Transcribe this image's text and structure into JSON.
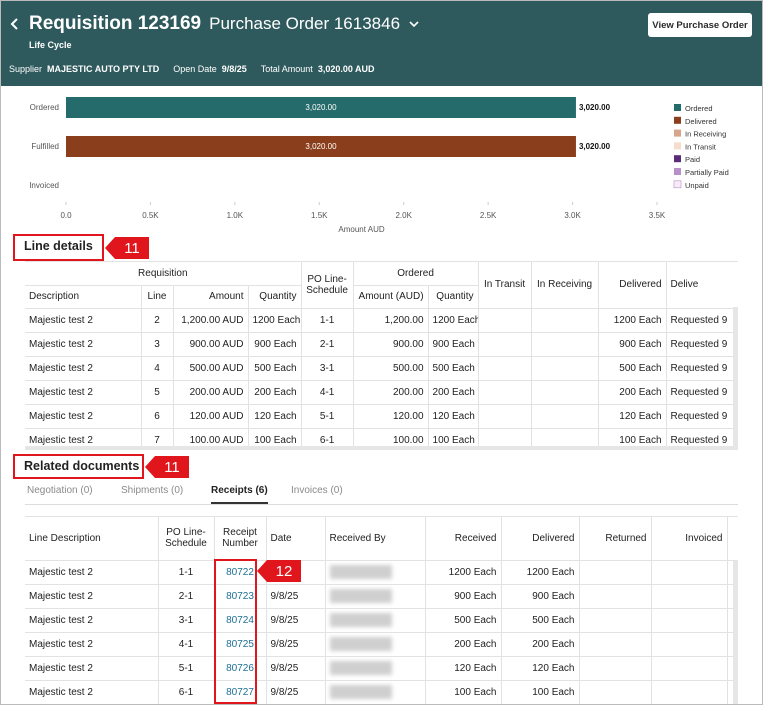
{
  "header": {
    "title": "Requisition 123169",
    "subtitle": "Purchase Order 1613846",
    "page_label": "Life Cycle",
    "button": "View Purchase Order",
    "info": [
      {
        "label": "Supplier",
        "value": "MAJESTIC AUTO PTY LTD"
      },
      {
        "label": "Open Date",
        "value": "9/8/25"
      },
      {
        "label": "Total Amount",
        "value": "3,020.00 AUD"
      }
    ]
  },
  "chart_data": {
    "type": "bar",
    "orientation": "horizontal",
    "categories": [
      "Ordered",
      "Fulfilled",
      "Invoiced"
    ],
    "series": [
      {
        "name": "Ordered",
        "color": "#256b6b",
        "values": [
          3020,
          null,
          null
        ],
        "value_labels": [
          "3,020.00",
          null,
          null
        ]
      },
      {
        "name": "Delivered",
        "color": "#8a3e1b",
        "values": [
          null,
          3020,
          null
        ],
        "value_labels": [
          null,
          "3,020.00",
          null
        ]
      },
      {
        "name": "In Receiving",
        "color": "#d6a58c",
        "values": [
          null,
          null,
          null
        ]
      },
      {
        "name": "In Transit",
        "color": "#f6dccb",
        "values": [
          null,
          null,
          null
        ]
      },
      {
        "name": "Paid",
        "color": "#5a2b78",
        "values": [
          null,
          null,
          null
        ]
      },
      {
        "name": "Partially Paid",
        "color": "#b790c9",
        "values": [
          null,
          null,
          null
        ]
      },
      {
        "name": "Unpaid",
        "color": "#f6ebf7",
        "values": [
          null,
          null,
          null
        ]
      }
    ],
    "xlim": [
      0,
      3500
    ],
    "xticks": [
      {
        "value": 0,
        "label": "0.0"
      },
      {
        "value": 500,
        "label": "0.5K"
      },
      {
        "value": 1000,
        "label": "1.0K"
      },
      {
        "value": 1500,
        "label": "1.5K"
      },
      {
        "value": 2000,
        "label": "2.0K"
      },
      {
        "value": 2500,
        "label": "2.5K"
      },
      {
        "value": 3000,
        "label": "3.0K"
      },
      {
        "value": 3500,
        "label": "3.5K"
      }
    ],
    "xlabel": "Amount AUD",
    "legend": "right"
  },
  "line_details": {
    "title": "Line details",
    "annotation": "11",
    "header_top": [
      "Requisition",
      "PO Line-Schedule",
      "Ordered",
      "In Transit",
      "In Receiving",
      "Delivered",
      "Delive"
    ],
    "header_sub": [
      "Description",
      "Line",
      "Amount",
      "Quantity",
      "Amount (AUD)",
      "Quantity"
    ],
    "rows": [
      [
        "Majestic test 2",
        2,
        "1,200.00 AUD",
        "1200 Each",
        "1-1",
        "1,200.00",
        "1200 Each",
        null,
        null,
        "1200 Each",
        "Requested 9"
      ],
      [
        "Majestic test 2",
        3,
        "900.00 AUD",
        "900 Each",
        "2-1",
        "900.00",
        "900 Each",
        null,
        null,
        "900 Each",
        "Requested 9"
      ],
      [
        "Majestic test 2",
        4,
        "500.00 AUD",
        "500 Each",
        "3-1",
        "500.00",
        "500 Each",
        null,
        null,
        "500 Each",
        "Requested 9"
      ],
      [
        "Majestic test 2",
        5,
        "200.00 AUD",
        "200 Each",
        "4-1",
        "200.00",
        "200 Each",
        null,
        null,
        "200 Each",
        "Requested 9"
      ],
      [
        "Majestic test 2",
        6,
        "120.00 AUD",
        "120 Each",
        "5-1",
        "120.00",
        "120 Each",
        null,
        null,
        "120 Each",
        "Requested 9"
      ],
      [
        "Majestic test 2",
        7,
        "100.00 AUD",
        "100 Each",
        "6-1",
        "100.00",
        "100 Each",
        null,
        null,
        "100 Each",
        "Requested 9"
      ]
    ]
  },
  "related_documents": {
    "title": "Related documents",
    "annotation": "11",
    "tabs": [
      "Negotiation (0)",
      "Shipments (0)",
      "Receipts (6)",
      "Invoices (0)"
    ],
    "active_tab": 2,
    "receipt_annotation": "12",
    "columns": [
      "Line Description",
      "PO Line-Schedule",
      "Receipt Number",
      "Date",
      "Received By",
      "Received",
      "Delivered",
      "Returned",
      "Invoiced"
    ],
    "rows": [
      [
        "Majestic test 2",
        "1-1",
        "80722",
        "9/8/25",
        null,
        "1200 Each",
        "1200 Each",
        null,
        null
      ],
      [
        "Majestic test 2",
        "2-1",
        "80723",
        "9/8/25",
        null,
        "900 Each",
        "900 Each",
        null,
        null
      ],
      [
        "Majestic test 2",
        "3-1",
        "80724",
        "9/8/25",
        null,
        "500 Each",
        "500 Each",
        null,
        null
      ],
      [
        "Majestic test 2",
        "4-1",
        "80725",
        "9/8/25",
        null,
        "200 Each",
        "200 Each",
        null,
        null
      ],
      [
        "Majestic test 2",
        "5-1",
        "80726",
        "9/8/25",
        null,
        "120 Each",
        "120 Each",
        null,
        null
      ],
      [
        "Majestic test 2",
        "6-1",
        "80727",
        "9/8/25",
        null,
        "100 Each",
        "100 Each",
        null,
        null
      ]
    ]
  }
}
